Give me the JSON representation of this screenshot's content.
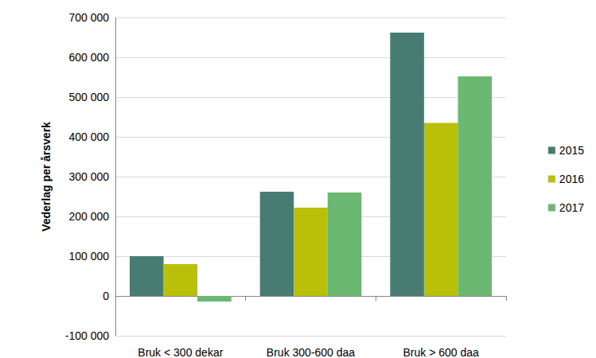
{
  "chart_data": {
    "type": "bar",
    "y_label": "Vederlag per årsverk",
    "categories": [
      "Bruk < 300 dekar",
      "Bruk 300-600 daa",
      "Bruk > 600 daa"
    ],
    "series": [
      {
        "name": "2015",
        "color": "#467c72",
        "values": [
          100000,
          262000,
          662000
        ]
      },
      {
        "name": "2016",
        "color": "#bac009",
        "values": [
          80000,
          222000,
          435000
        ]
      },
      {
        "name": "2017",
        "color": "#6ab872",
        "values": [
          -14000,
          260000,
          552000
        ]
      }
    ],
    "ylim": [
      -100000,
      700000
    ],
    "yticks": [
      {
        "value": -100000,
        "label": "-100 000"
      },
      {
        "value": 0,
        "label": "0"
      },
      {
        "value": 100000,
        "label": "100 000"
      },
      {
        "value": 200000,
        "label": "200 000"
      },
      {
        "value": 300000,
        "label": "300 000"
      },
      {
        "value": 400000,
        "label": "400 000"
      },
      {
        "value": 500000,
        "label": "500 000"
      },
      {
        "value": 600000,
        "label": "600 000"
      },
      {
        "value": 700000,
        "label": "700 000"
      }
    ],
    "grid": true,
    "legend": "right"
  }
}
